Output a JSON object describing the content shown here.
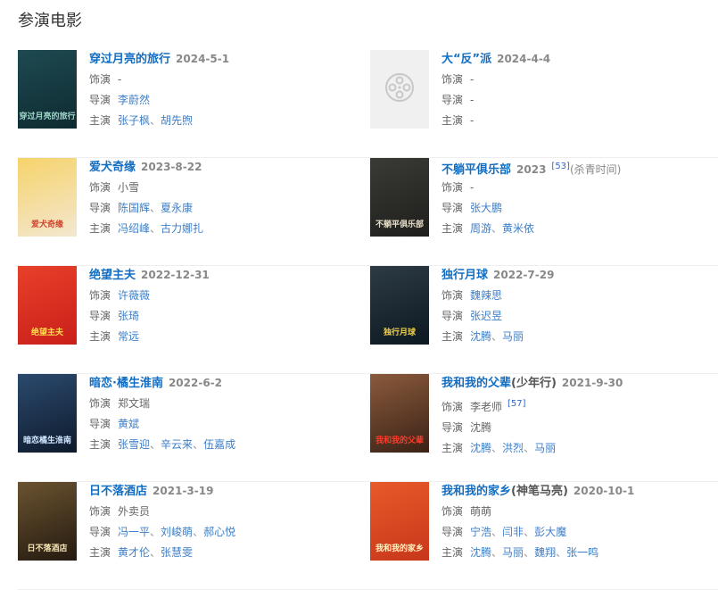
{
  "heading": "参演电影",
  "labels": {
    "role": "饰演",
    "director": "导演",
    "cast": "主演"
  },
  "separator": "、",
  "movies": [
    {
      "title": "穿过月亮的旅行",
      "date": "2024-5-1",
      "poster": {
        "colors": [
          "#1e4a52",
          "#0e2a30"
        ],
        "text": "穿过月亮的旅行",
        "text_color": "#9fd4c8"
      },
      "role": [
        {
          "name": "-",
          "link": false
        }
      ],
      "director": [
        {
          "name": "李蔚然",
          "link": true
        }
      ],
      "cast": [
        {
          "name": "张子枫",
          "link": true
        },
        {
          "name": "胡先煦",
          "link": true
        }
      ]
    },
    {
      "title": "大“反”派",
      "date": "2024-4-4",
      "poster": {
        "placeholder": true,
        "icon": "film-reel-icon"
      },
      "role": [
        {
          "name": "-",
          "link": false
        }
      ],
      "director": [
        {
          "name": "-",
          "link": false
        }
      ],
      "cast": [
        {
          "name": "-",
          "link": false
        }
      ]
    },
    {
      "title": "爱犬奇缘",
      "date": "2023-8-22",
      "poster": {
        "colors": [
          "#f6d36a",
          "#f3e7d0"
        ],
        "text": "爱犬奇缘",
        "text_color": "#d2452f"
      },
      "role": [
        {
          "name": "小雪",
          "link": false
        }
      ],
      "director": [
        {
          "name": "陈国辉",
          "link": true
        },
        {
          "name": "夏永康",
          "link": true
        }
      ],
      "cast": [
        {
          "name": "冯绍峰",
          "link": true
        },
        {
          "name": "古力娜扎",
          "link": true
        }
      ]
    },
    {
      "title": "不躺平俱乐部",
      "date": "2023",
      "ref": "[53]",
      "note": "(杀青时间)",
      "poster": {
        "colors": [
          "#3a3a36",
          "#1e1e1c"
        ],
        "text": "不躺平俱乐部",
        "text_color": "#e8e0c8"
      },
      "role": [
        {
          "name": "-",
          "link": false
        }
      ],
      "director": [
        {
          "name": "张大鹏",
          "link": true
        }
      ],
      "cast": [
        {
          "name": "周游",
          "link": true
        },
        {
          "name": "黄米依",
          "link": true
        }
      ]
    },
    {
      "title": "绝望主夫",
      "date": "2022-12-31",
      "poster": {
        "colors": [
          "#e8402a",
          "#c91f1a"
        ],
        "text": "绝望主夫",
        "text_color": "#ffe14a"
      },
      "role": [
        {
          "name": "许薇薇",
          "link": true
        }
      ],
      "director": [
        {
          "name": "张琦",
          "link": true
        }
      ],
      "cast": [
        {
          "name": "常远",
          "link": true
        }
      ]
    },
    {
      "title": "独行月球",
      "date": "2022-7-29",
      "poster": {
        "colors": [
          "#2d3b45",
          "#0d1820"
        ],
        "text": "独行月球",
        "text_color": "#f2d14a"
      },
      "role": [
        {
          "name": "魏辣思",
          "link": true
        }
      ],
      "director": [
        {
          "name": "张迟昱",
          "link": true
        }
      ],
      "cast": [
        {
          "name": "沈腾",
          "link": true
        },
        {
          "name": "马丽",
          "link": true
        }
      ]
    },
    {
      "title": "暗恋·橘生淮南",
      "date": "2022-6-2",
      "poster": {
        "colors": [
          "#2b4a6e",
          "#0e1a2c"
        ],
        "text": "暗恋橘生淮南",
        "text_color": "#cfe6ff"
      },
      "role": [
        {
          "name": "郑文瑞",
          "link": false
        }
      ],
      "director": [
        {
          "name": "黄斌",
          "link": true
        }
      ],
      "cast": [
        {
          "name": "张雪迎",
          "link": true
        },
        {
          "name": "辛云来",
          "link": true
        },
        {
          "name": "伍嘉成",
          "link": true
        }
      ]
    },
    {
      "title": "我和我的父辈",
      "suffix": "(少年行)",
      "date": "2021-9-30",
      "ref": "[57]",
      "ref_after_role": true,
      "poster": {
        "colors": [
          "#8a5a3c",
          "#3a2216"
        ],
        "text": "我和我的父辈",
        "text_color": "#ff3a2a"
      },
      "role": [
        {
          "name": "李老师",
          "link": false
        }
      ],
      "director": [
        {
          "name": "沈腾",
          "link": false
        }
      ],
      "cast": [
        {
          "name": "沈腾",
          "link": true
        },
        {
          "name": "洪烈",
          "link": true
        },
        {
          "name": "马丽",
          "link": true
        }
      ]
    },
    {
      "title": "日不落酒店",
      "date": "2021-3-19",
      "poster": {
        "colors": [
          "#6a5330",
          "#241a10"
        ],
        "text": "日不落酒店",
        "text_color": "#f5e3b0"
      },
      "role": [
        {
          "name": "外卖员",
          "link": false
        }
      ],
      "director": [
        {
          "name": "冯一平",
          "link": true
        },
        {
          "name": "刘峻萌",
          "link": true
        },
        {
          "name": "郝心悦",
          "link": true
        }
      ],
      "cast": [
        {
          "name": "黄才伦",
          "link": true
        },
        {
          "name": "张慧雯",
          "link": true
        }
      ]
    },
    {
      "title": "我和我的家乡",
      "suffix": "(神笔马亮)",
      "date": "2020-10-1",
      "poster": {
        "colors": [
          "#e85a2a",
          "#c8361a"
        ],
        "text": "我和我的家乡",
        "text_color": "#fff3c0"
      },
      "role": [
        {
          "name": "萌萌",
          "link": false
        }
      ],
      "director": [
        {
          "name": "宁浩",
          "link": true
        },
        {
          "name": "闫非",
          "link": true
        },
        {
          "name": "彭大魔",
          "link": true
        }
      ],
      "cast": [
        {
          "name": "沈腾",
          "link": true
        },
        {
          "name": "马丽",
          "link": true
        },
        {
          "name": "魏翔",
          "link": true
        },
        {
          "name": "张一鸣",
          "link": true
        }
      ]
    }
  ]
}
